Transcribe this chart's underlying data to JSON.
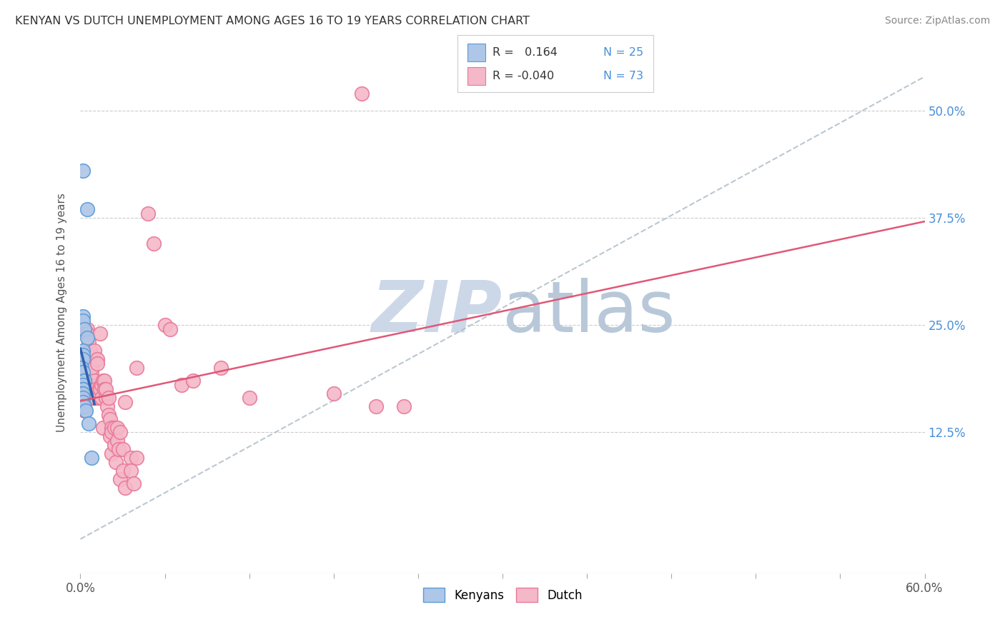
{
  "title": "KENYAN VS DUTCH UNEMPLOYMENT AMONG AGES 16 TO 19 YEARS CORRELATION CHART",
  "source": "Source: ZipAtlas.com",
  "ylabel": "Unemployment Among Ages 16 to 19 years",
  "xlim": [
    0.0,
    0.6
  ],
  "ylim": [
    -0.04,
    0.57
  ],
  "legend_R_kenyan": "0.164",
  "legend_N_kenyan": "25",
  "legend_R_dutch": "-0.040",
  "legend_N_dutch": "73",
  "kenyan_color": "#aec6e8",
  "dutch_color": "#f4b8c8",
  "kenyan_edge_color": "#5b9bd5",
  "dutch_edge_color": "#e87898",
  "kenyan_line_color": "#3060b0",
  "dutch_line_color": "#e05878",
  "ref_line_color": "#b0bec8",
  "watermark_color": "#ccd8e8",
  "kenyan_x": [
    0.002,
    0.005,
    0.002,
    0.002,
    0.003,
    0.005,
    0.002,
    0.002,
    0.002,
    0.001,
    0.002,
    0.003,
    0.003,
    0.002,
    0.002,
    0.002,
    0.001,
    0.002,
    0.002,
    0.002,
    0.002,
    0.003,
    0.004,
    0.006,
    0.008
  ],
  "kenyan_y": [
    0.43,
    0.385,
    0.26,
    0.255,
    0.245,
    0.235,
    0.22,
    0.215,
    0.21,
    0.2,
    0.195,
    0.185,
    0.185,
    0.18,
    0.175,
    0.175,
    0.17,
    0.17,
    0.165,
    0.16,
    0.155,
    0.155,
    0.15,
    0.135,
    0.095
  ],
  "dutch_x": [
    0.002,
    0.003,
    0.004,
    0.004,
    0.005,
    0.005,
    0.005,
    0.006,
    0.006,
    0.006,
    0.007,
    0.007,
    0.007,
    0.007,
    0.008,
    0.008,
    0.008,
    0.009,
    0.01,
    0.01,
    0.011,
    0.011,
    0.012,
    0.012,
    0.013,
    0.013,
    0.014,
    0.014,
    0.015,
    0.015,
    0.016,
    0.016,
    0.017,
    0.017,
    0.018,
    0.018,
    0.019,
    0.02,
    0.02,
    0.021,
    0.021,
    0.022,
    0.022,
    0.022,
    0.024,
    0.024,
    0.025,
    0.026,
    0.026,
    0.027,
    0.028,
    0.028,
    0.03,
    0.03,
    0.032,
    0.032,
    0.036,
    0.036,
    0.038,
    0.04,
    0.04,
    0.048,
    0.052,
    0.06,
    0.064,
    0.072,
    0.08,
    0.1,
    0.12,
    0.18,
    0.2,
    0.21,
    0.23
  ],
  "dutch_y": [
    0.17,
    0.15,
    0.185,
    0.2,
    0.18,
    0.245,
    0.24,
    0.23,
    0.21,
    0.175,
    0.215,
    0.22,
    0.18,
    0.17,
    0.195,
    0.2,
    0.175,
    0.165,
    0.185,
    0.22,
    0.165,
    0.175,
    0.21,
    0.205,
    0.175,
    0.165,
    0.24,
    0.175,
    0.165,
    0.18,
    0.185,
    0.13,
    0.185,
    0.175,
    0.165,
    0.175,
    0.155,
    0.145,
    0.165,
    0.14,
    0.12,
    0.13,
    0.125,
    0.1,
    0.13,
    0.11,
    0.09,
    0.13,
    0.115,
    0.105,
    0.07,
    0.125,
    0.08,
    0.105,
    0.06,
    0.16,
    0.095,
    0.08,
    0.065,
    0.2,
    0.095,
    0.38,
    0.345,
    0.25,
    0.245,
    0.18,
    0.185,
    0.2,
    0.165,
    0.17,
    0.52,
    0.155,
    0.155
  ],
  "xtick_positions": [
    0.0,
    0.06,
    0.12,
    0.18,
    0.24,
    0.3,
    0.36,
    0.42,
    0.48,
    0.54,
    0.6
  ],
  "ytick_positions": [
    0.0,
    0.125,
    0.25,
    0.375,
    0.5
  ],
  "ytick_labels": [
    "",
    "12.5%",
    "25.0%",
    "37.5%",
    "50.0%"
  ]
}
